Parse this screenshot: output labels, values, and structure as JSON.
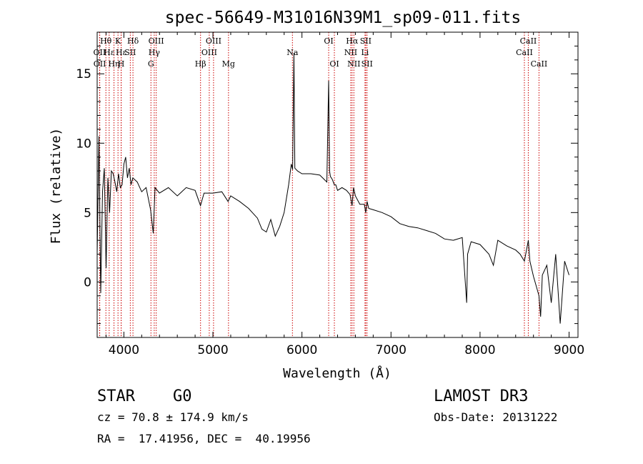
{
  "chart_data": {
    "type": "line",
    "title": "spec-56649-M31016N39M1_sp09-011.fits",
    "xlabel": "Wavelength (Å)",
    "ylabel": "Flux (relative)",
    "xlim": [
      3700,
      9100
    ],
    "ylim": [
      -4,
      18
    ],
    "xticks": [
      4000,
      5000,
      6000,
      7000,
      8000,
      9000
    ],
    "yticks": [
      0,
      5,
      10,
      15
    ],
    "grid": false,
    "series": [
      {
        "name": "flux",
        "x": [
          3700,
          3720,
          3740,
          3760,
          3780,
          3800,
          3820,
          3840,
          3860,
          3880,
          3900,
          3920,
          3940,
          3960,
          3980,
          4000,
          4020,
          4040,
          4060,
          4080,
          4100,
          4150,
          4200,
          4250,
          4300,
          4330,
          4350,
          4400,
          4500,
          4600,
          4700,
          4800,
          4860,
          4900,
          5000,
          5100,
          5170,
          5200,
          5300,
          5400,
          5500,
          5550,
          5600,
          5650,
          5700,
          5750,
          5800,
          5850,
          5880,
          5895,
          5910,
          5920,
          5950,
          6000,
          6100,
          6200,
          6280,
          6300,
          6310,
          6320,
          6340,
          6364,
          6380,
          6400,
          6450,
          6500,
          6540,
          6563,
          6580,
          6600,
          6650,
          6700,
          6716,
          6731,
          6750,
          6800,
          6900,
          7000,
          7100,
          7200,
          7300,
          7400,
          7500,
          7600,
          7700,
          7800,
          7850,
          7860,
          7900,
          8000,
          8100,
          8150,
          8200,
          8300,
          8400,
          8450,
          8498,
          8542,
          8560,
          8600,
          8640,
          8662,
          8680,
          8700,
          8750,
          8800,
          8850,
          8900,
          8950,
          9000
        ],
        "y": [
          2.0,
          10.5,
          -0.8,
          6.5,
          8.2,
          1.0,
          7.5,
          5.0,
          8.0,
          7.8,
          7.2,
          6.5,
          7.8,
          6.8,
          7.0,
          8.5,
          9.0,
          7.5,
          8.2,
          7.0,
          7.5,
          7.2,
          6.5,
          6.8,
          5.2,
          3.5,
          6.8,
          6.4,
          6.8,
          6.2,
          6.8,
          6.6,
          5.5,
          6.4,
          6.4,
          6.5,
          5.8,
          6.2,
          5.8,
          5.3,
          4.6,
          3.8,
          3.6,
          4.5,
          3.3,
          4.0,
          5.0,
          7.0,
          8.5,
          8.1,
          16.5,
          8.2,
          8.0,
          7.8,
          7.8,
          7.7,
          7.2,
          14.5,
          8.0,
          7.6,
          7.4,
          7.0,
          7.0,
          6.6,
          6.8,
          6.6,
          6.3,
          5.5,
          6.8,
          6.2,
          5.6,
          5.6,
          5.0,
          5.8,
          5.3,
          5.2,
          5.0,
          4.7,
          4.2,
          4.0,
          3.9,
          3.7,
          3.5,
          3.1,
          3.0,
          3.2,
          -1.5,
          2.0,
          2.9,
          2.7,
          2.0,
          1.2,
          3.0,
          2.6,
          2.3,
          2.0,
          1.5,
          3.0,
          1.5,
          0.4,
          -0.5,
          -1.0,
          -2.5,
          0.5,
          1.2,
          -1.5,
          2.0,
          -3.0,
          1.5,
          0.5
        ]
      }
    ],
    "lines": [
      {
        "label": "Hθ",
        "x": 3798,
        "row": 1
      },
      {
        "label": "OII",
        "x": 3727,
        "row": 2
      },
      {
        "label": "OII",
        "x": 3729,
        "row": 3
      },
      {
        "label": "Hε",
        "x": 3835,
        "row": 2
      },
      {
        "label": "Hη",
        "x": 3889,
        "row": 3
      },
      {
        "label": "K",
        "x": 3934,
        "row": 1
      },
      {
        "label": "Hε",
        "x": 3970,
        "row": 2
      },
      {
        "label": "H",
        "x": 3969,
        "row": 3
      },
      {
        "label": "Hδ",
        "x": 4102,
        "row": 1
      },
      {
        "label": "SII",
        "x": 4072,
        "row": 2
      },
      {
        "label": "OIII",
        "x": 4363,
        "row": 1
      },
      {
        "label": "Hγ",
        "x": 4341,
        "row": 2
      },
      {
        "label": "G",
        "x": 4304,
        "row": 3
      },
      {
        "label": "Hβ",
        "x": 4861,
        "row": 3
      },
      {
        "label": "OIII",
        "x": 5007,
        "row": 1
      },
      {
        "label": "OIII",
        "x": 4959,
        "row": 2
      },
      {
        "label": "Mg",
        "x": 5175,
        "row": 3
      },
      {
        "label": "Na",
        "x": 5893,
        "row": 2
      },
      {
        "label": "OI",
        "x": 6300,
        "row": 1
      },
      {
        "label": "OI",
        "x": 6364,
        "row": 3
      },
      {
        "label": "Hα",
        "x": 6563,
        "row": 1
      },
      {
        "label": "NII",
        "x": 6548,
        "row": 2
      },
      {
        "label": "NII",
        "x": 6583,
        "row": 3
      },
      {
        "label": "SII",
        "x": 6716,
        "row": 1
      },
      {
        "label": "Li",
        "x": 6708,
        "row": 2
      },
      {
        "label": "SII",
        "x": 6731,
        "row": 3
      },
      {
        "label": "CaII",
        "x": 8542,
        "row": 1
      },
      {
        "label": "CaII",
        "x": 8498,
        "row": 2
      },
      {
        "label": "CaII",
        "x": 8662,
        "row": 3
      }
    ]
  },
  "info": {
    "class_label": "STAR",
    "subclass": "G0",
    "survey": "LAMOST DR3",
    "cz": "cz = 70.8 ± 174.9 km/s",
    "obs_date": "Obs-Date: 20131222",
    "coords": "RA =  17.41956, DEC =  40.19956"
  },
  "colors": {
    "spectrum": "#000000",
    "line_markers": "#cc0000",
    "axes": "#000000"
  }
}
